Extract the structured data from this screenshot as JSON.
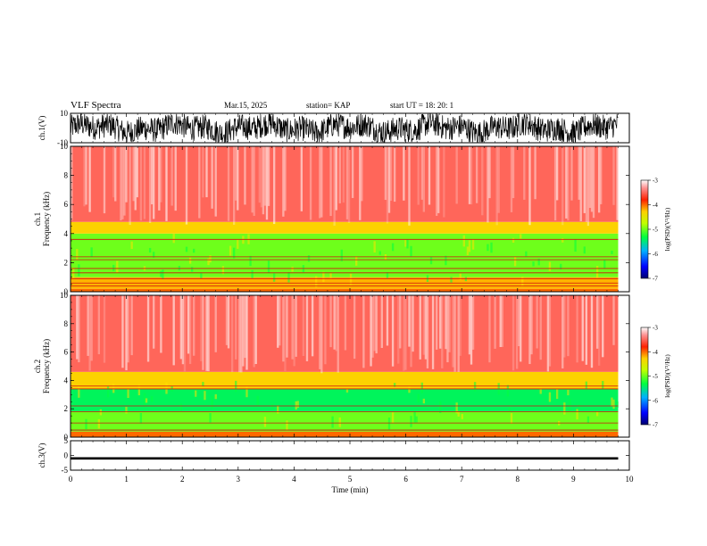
{
  "header": {
    "title": "VLF Spectra",
    "date": "Mar.15, 2025",
    "station": "station= KAP",
    "start": "start  UT =   18: 20: 1"
  },
  "chart_data": [
    {
      "type": "line",
      "panel": "ch1-waveform",
      "ylabel": "ch.1(V)",
      "ylim": [
        -10,
        10
      ],
      "yticks": [
        "10",
        "-10"
      ],
      "xlim": [
        0,
        10
      ],
      "x_extent_min": 9.8,
      "description_values": {
        "amplitude_range": [
          -10,
          10
        ]
      }
    },
    {
      "type": "heatmap",
      "panel": "ch1-spectrogram",
      "ylabel": "ch.1\nFrequency (kHz)",
      "ylim": [
        0,
        10
      ],
      "yticks": [
        "0",
        "2",
        "4",
        "6",
        "8",
        "10"
      ],
      "xlim": [
        0,
        10
      ],
      "x_extent_min": 9.8,
      "colorbar": {
        "label": "log(PSD)(V²/Hz)",
        "range": [
          -7,
          -3
        ],
        "ticks": [
          "-3",
          "-4",
          "-5",
          "-6",
          "-7"
        ]
      },
      "bands_khz": [
        {
          "from": 0.0,
          "to": 0.2,
          "level": -4.0
        },
        {
          "from": 0.2,
          "to": 1.0,
          "level": -4.2
        },
        {
          "from": 1.0,
          "to": 4.0,
          "level": -5.0
        },
        {
          "from": 4.0,
          "to": 4.8,
          "level": -4.3
        },
        {
          "from": 4.8,
          "to": 10.0,
          "level": -3.5
        }
      ],
      "lines_khz": [
        0.4,
        0.6,
        0.9,
        1.3,
        1.6,
        2.2,
        2.4,
        3.6
      ]
    },
    {
      "type": "heatmap",
      "panel": "ch2-spectrogram",
      "ylabel": "ch.2\nFrequency (kHz)",
      "ylim": [
        0,
        10
      ],
      "yticks": [
        "0",
        "2",
        "4",
        "6",
        "8",
        "10"
      ],
      "xlim": [
        0,
        10
      ],
      "x_extent_min": 9.8,
      "colorbar": {
        "label": "log(PSD)(V²/Hz)",
        "range": [
          -7,
          -3
        ],
        "ticks": [
          "-3",
          "-4",
          "-5",
          "-6",
          "-7"
        ]
      },
      "bands_khz": [
        {
          "from": 0.0,
          "to": 0.4,
          "level": -4.0
        },
        {
          "from": 0.4,
          "to": 1.8,
          "level": -5.0
        },
        {
          "from": 1.8,
          "to": 3.4,
          "level": -5.4
        },
        {
          "from": 3.4,
          "to": 4.6,
          "level": -4.3
        },
        {
          "from": 4.6,
          "to": 10.0,
          "level": -3.5
        }
      ],
      "lines_khz": [
        0.5,
        1.0,
        1.8,
        2.2,
        3.4,
        3.6
      ]
    },
    {
      "type": "line",
      "panel": "ch3-waveform",
      "ylabel": "ch.3(V)",
      "ylim": [
        -5,
        5
      ],
      "yticks": [
        "5",
        "0",
        "-5"
      ],
      "xlim": [
        0,
        10
      ],
      "x_extent_min": 9.8,
      "level_v": [
        -1.4,
        -0.6
      ],
      "xlabel": "Time (min)",
      "xticks": [
        "0",
        "1",
        "2",
        "3",
        "4",
        "5",
        "6",
        "7",
        "8",
        "9",
        "10"
      ]
    }
  ]
}
